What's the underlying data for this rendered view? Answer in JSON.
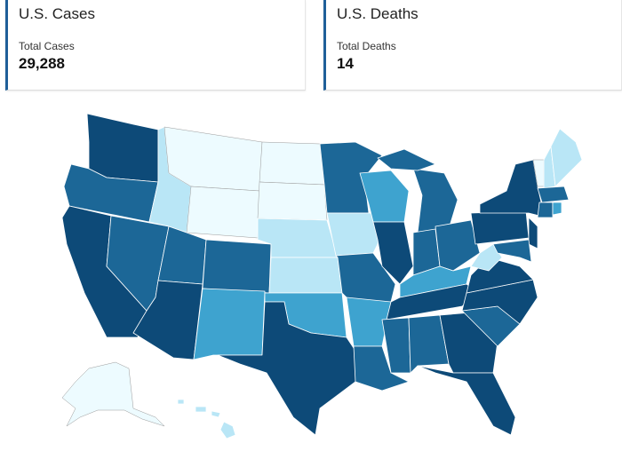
{
  "cards": [
    {
      "title": "U.S. Cases",
      "label": "Total Cases",
      "value": "29,288"
    },
    {
      "title": "U.S. Deaths",
      "label": "Total Deaths",
      "value": "14"
    }
  ]
}
